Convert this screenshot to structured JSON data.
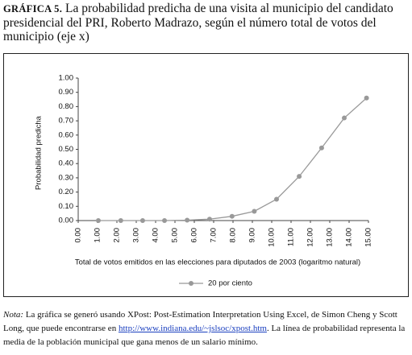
{
  "chart_data": {
    "type": "line",
    "title_label": "GRÁFICA 5.",
    "title": "La probabilidad predicha de una visita al municipio del candidato presidencial del PRI, Roberto Madrazo, según el número total de votos del municipio (eje x)",
    "x_label": "Total de votos emitidos en las elecciones para diputados de 2003 (logaritmo natural)",
    "y_label": "Probabilidad predicha",
    "x": [
      1.04,
      2.2,
      3.33,
      4.46,
      5.63,
      6.79,
      7.95,
      9.1,
      10.25,
      11.42,
      12.58,
      13.75,
      14.9
    ],
    "series": [
      {
        "name": "20 por ciento",
        "color": "#999999",
        "values": [
          0,
          0,
          0,
          0,
          0.003,
          0.01,
          0.03,
          0.065,
          0.15,
          0.31,
          0.51,
          0.72,
          0.86
        ]
      }
    ],
    "xlim": [
      0,
      15
    ],
    "xticks": [
      {
        "value": 0,
        "label": "0.00"
      },
      {
        "value": 1,
        "label": "1.00"
      },
      {
        "value": 2,
        "label": "2.00"
      },
      {
        "value": 3,
        "label": "3.00"
      },
      {
        "value": 4,
        "label": "4.00"
      },
      {
        "value": 5,
        "label": "5.00"
      },
      {
        "value": 6,
        "label": "6.00"
      },
      {
        "value": 7,
        "label": "7.00"
      },
      {
        "value": 8,
        "label": "8.00"
      },
      {
        "value": 9,
        "label": "9.00"
      },
      {
        "value": 10,
        "label": "10.00"
      },
      {
        "value": 11,
        "label": "11.00"
      },
      {
        "value": 12,
        "label": "12.00"
      },
      {
        "value": 13,
        "label": "13.00"
      },
      {
        "value": 14,
        "label": "14.00"
      },
      {
        "value": 15,
        "label": "15.00"
      }
    ],
    "ylim": [
      0,
      1
    ],
    "yticks": [
      {
        "value": 0,
        "label": "0.00"
      },
      {
        "value": 0.1,
        "label": "0.10"
      },
      {
        "value": 0.2,
        "label": "0.20"
      },
      {
        "value": 0.3,
        "label": "0.30"
      },
      {
        "value": 0.4,
        "label": "0.40"
      },
      {
        "value": 0.5,
        "label": "0.50"
      },
      {
        "value": 0.6,
        "label": "0.60"
      },
      {
        "value": 0.7,
        "label": "0.70"
      },
      {
        "value": 0.8,
        "label": "0.80"
      },
      {
        "value": 0.9,
        "label": "0.90"
      },
      {
        "value": 1,
        "label": "1.00"
      }
    ],
    "legend": "bottom",
    "note": {
      "label": "Nota:",
      "text_before": "La gráfica se generó usando XPost: Post-Estimation Interpretation Using Excel, de Simon Cheng y Scott Long, que puede encontrarse en",
      "link": "http://www.indiana.edu/~jslsoc/xpost.htm",
      "text_after": ". La línea de probabilidad representa la media de la población municipal que gana menos de un salario mínimo."
    }
  }
}
